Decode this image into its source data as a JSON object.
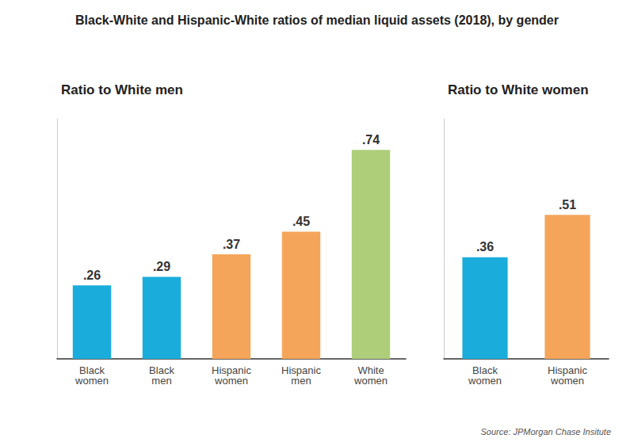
{
  "title": "Black-White and Hispanic-White ratios of median liquid assets (2018), by gender",
  "annotations": [
    "Source: JPMorgan Chase Insitute"
  ],
  "chart_data": [
    {
      "type": "bar",
      "title": "Ratio to White men",
      "categories": [
        "Black\nwomen",
        "Black\nmen",
        "Hispanic\nwomen",
        "Hispanic\nmen",
        "White\nwomen"
      ],
      "values": [
        0.26,
        0.29,
        0.37,
        0.45,
        0.74
      ],
      "value_labels": [
        ".26",
        ".29",
        ".37",
        ".45",
        ".74"
      ],
      "colors": [
        "#1AADDB",
        "#1AADDB",
        "#F5A55A",
        "#F5A55A",
        "#AECE7A"
      ],
      "ylim": [
        0,
        0.85
      ],
      "data_labels": true,
      "tick_labels": "x",
      "grid": false
    },
    {
      "type": "bar",
      "title": "Ratio to White women",
      "categories": [
        "Black\nwomen",
        "Hispanic\nwomen"
      ],
      "values": [
        0.36,
        0.51
      ],
      "value_labels": [
        ".36",
        ".51"
      ],
      "colors": [
        "#1AADDB",
        "#F5A55A"
      ],
      "ylim": [
        0,
        0.85
      ],
      "data_labels": true,
      "tick_labels": "x",
      "grid": false
    }
  ]
}
